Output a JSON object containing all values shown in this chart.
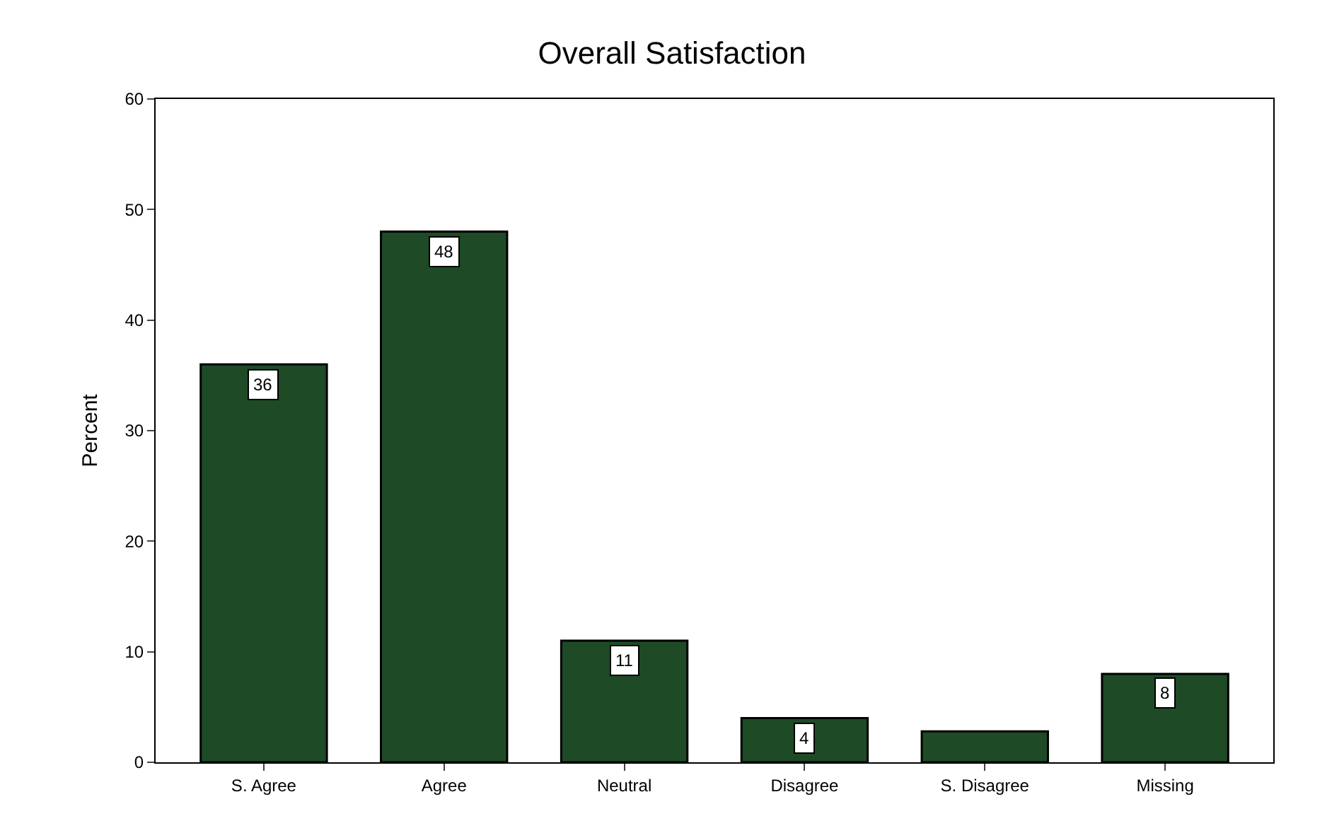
{
  "chart_data": {
    "type": "bar",
    "title": "Overall Satisfaction",
    "ylabel": "Percent",
    "categories": [
      "S. Agree",
      "Agree",
      "Neutral",
      "Disagree",
      "S. Disagree",
      "Missing"
    ],
    "values": [
      36,
      48,
      11,
      4,
      2.8,
      8
    ],
    "value_labels": [
      "36",
      "48",
      "11",
      "4",
      null,
      "8"
    ],
    "color": "#1e4a26",
    "ylim": [
      0,
      60
    ],
    "yticks": [
      0,
      10,
      20,
      30,
      40,
      50,
      60
    ]
  }
}
